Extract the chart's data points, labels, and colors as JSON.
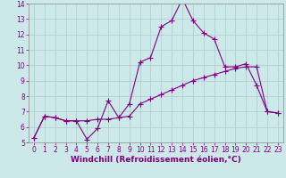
{
  "xlabel": "Windchill (Refroidissement éolien,°C)",
  "background_color": "#cce8e8",
  "line_color": "#800080",
  "grid_color": "#aacccc",
  "x_upper_data": [
    0,
    1,
    2,
    3,
    4,
    5,
    6,
    7,
    8,
    9,
    10,
    11,
    12,
    13,
    14,
    15,
    16,
    17,
    18,
    19,
    20,
    21,
    22,
    23
  ],
  "y_upper_data": [
    5.3,
    6.7,
    6.6,
    6.4,
    6.4,
    5.2,
    5.9,
    7.7,
    6.6,
    7.5,
    10.2,
    10.5,
    12.5,
    12.9,
    14.3,
    12.9,
    12.1,
    11.7,
    9.9,
    9.9,
    10.1,
    8.7,
    7.0,
    6.9
  ],
  "x_lower_data": [
    0,
    1,
    2,
    3,
    4,
    5,
    6,
    7,
    8,
    9,
    10,
    11,
    12,
    13,
    14,
    15,
    16,
    17,
    18,
    19,
    20,
    21,
    22,
    23
  ],
  "y_lower_data": [
    5.3,
    6.7,
    6.6,
    6.4,
    6.4,
    6.4,
    6.5,
    6.5,
    6.6,
    6.7,
    7.5,
    7.8,
    8.1,
    8.4,
    8.7,
    9.0,
    9.2,
    9.4,
    9.6,
    9.8,
    9.9,
    9.9,
    7.0,
    6.9
  ],
  "xlim": [
    -0.5,
    23.5
  ],
  "ylim": [
    5,
    14
  ],
  "yticks": [
    5,
    6,
    7,
    8,
    9,
    10,
    11,
    12,
    13,
    14
  ],
  "xticks": [
    0,
    1,
    2,
    3,
    4,
    5,
    6,
    7,
    8,
    9,
    10,
    11,
    12,
    13,
    14,
    15,
    16,
    17,
    18,
    19,
    20,
    21,
    22,
    23
  ],
  "marker": "+",
  "markersize": 4,
  "linewidth": 0.8,
  "xlabel_fontsize": 6.5,
  "tick_fontsize": 5.5,
  "spine_color": "#999999",
  "axis_label_color": "#800080",
  "tick_label_color": "#800080"
}
